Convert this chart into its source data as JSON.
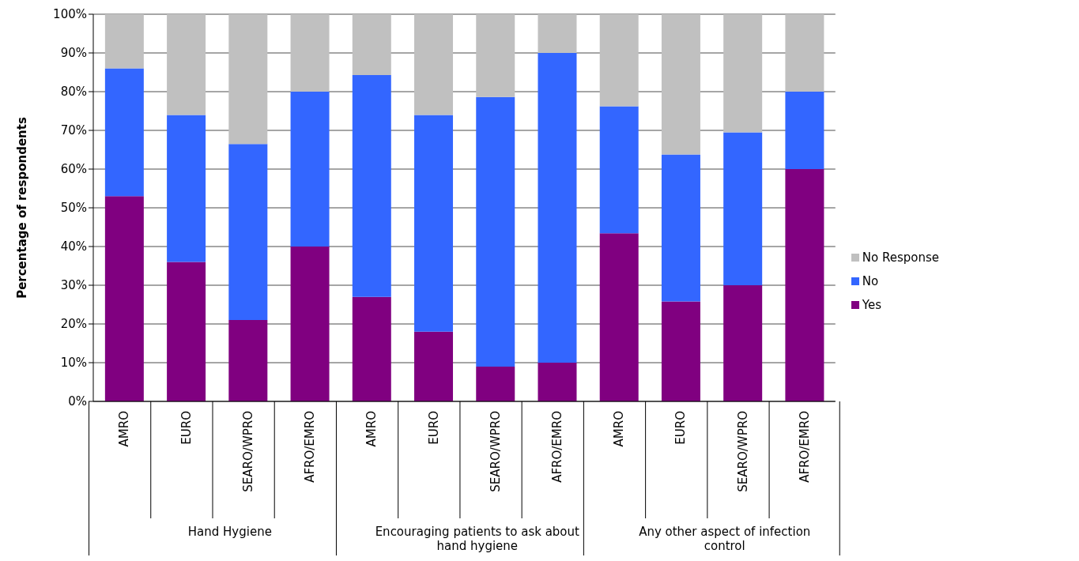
{
  "chart_data": {
    "type": "bar",
    "stacked": true,
    "ylabel": "Percentage of respondents",
    "categories": [
      "AMRO",
      "EURO",
      "SEARO/WPRO",
      "AFRO/EMRO",
      "AMRO",
      "EURO",
      "SEARO/WPRO",
      "AFRO/EMRO",
      "AMRO",
      "EURO",
      "SEARO/WPRO",
      "AFRO/EMRO"
    ],
    "annotations": [
      "Hand Hygiene",
      "Encouraging patients to ask about hand hygiene",
      "Any other aspect of infection control"
    ],
    "series": [
      {
        "name": "Yes",
        "color": "#800080",
        "values": [
          53,
          36,
          21,
          40,
          27,
          18,
          9,
          10,
          43.4,
          25.8,
          30,
          60
        ]
      },
      {
        "name": "No",
        "color": "#3366ff",
        "values": [
          33,
          38,
          45.5,
          40,
          57.3,
          56,
          69.6,
          80,
          32.8,
          38,
          39.5,
          20
        ]
      },
      {
        "name": "No Response",
        "color": "#c0c0c0",
        "values": [
          14,
          26,
          33.5,
          20,
          15.7,
          26,
          21.4,
          10,
          23.8,
          36.2,
          30.5,
          20
        ]
      }
    ],
    "ylim": [
      0,
      100
    ],
    "yticks": [
      {
        "value": 0,
        "label": "0%"
      },
      {
        "value": 10,
        "label": "10%"
      },
      {
        "value": 20,
        "label": "20%"
      },
      {
        "value": 30,
        "label": "30%"
      },
      {
        "value": 40,
        "label": "40%"
      },
      {
        "value": 50,
        "label": "50%"
      },
      {
        "value": 60,
        "label": "60%"
      },
      {
        "value": 70,
        "label": "70%"
      },
      {
        "value": 80,
        "label": "80%"
      },
      {
        "value": 90,
        "label": "90%"
      },
      {
        "value": 100,
        "label": "100%"
      }
    ],
    "grid": "y",
    "legend": "right"
  }
}
